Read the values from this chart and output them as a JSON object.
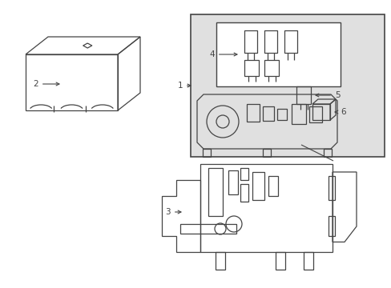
{
  "bg_color": "#ffffff",
  "line_color": "#444444",
  "gray_fill": "#e0e0e0",
  "label_color": "#333333",
  "fig_w": 4.89,
  "fig_h": 3.6,
  "dpi": 100
}
